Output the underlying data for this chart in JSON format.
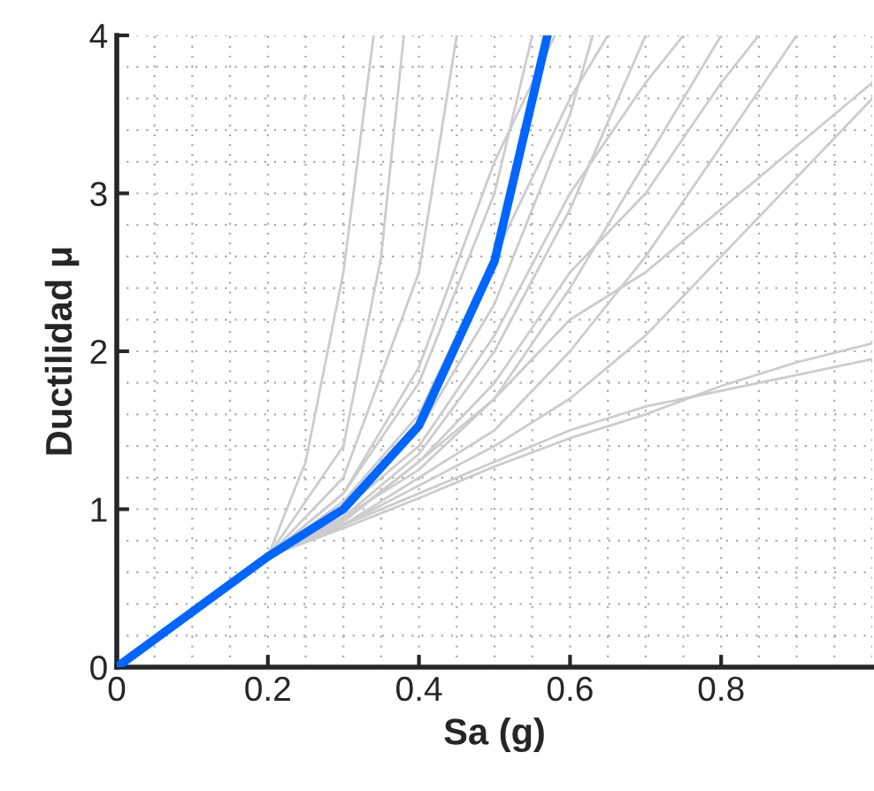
{
  "chart_data": {
    "type": "line",
    "xlabel": "Sa (g)",
    "ylabel": "Ductilidad μ",
    "xlim": [
      0,
      1
    ],
    "ylim": [
      0,
      4
    ],
    "xticks": [
      0,
      0.2,
      0.4,
      0.6,
      0.8
    ],
    "yticks": [
      0,
      1,
      2,
      3,
      4
    ],
    "grid": true,
    "legend": false,
    "marker": "none",
    "line_style": "solid",
    "series": [
      {
        "color": "#cccccc",
        "x": [
          0,
          0.2,
          0.3,
          0.35,
          0.38
        ],
        "values": [
          0,
          0.7,
          1.4,
          2.6,
          4
        ]
      },
      {
        "color": "#cccccc",
        "x": [
          0,
          0.2,
          0.3,
          0.4,
          0.45
        ],
        "values": [
          0,
          0.7,
          1.2,
          2.5,
          4
        ]
      },
      {
        "color": "#cccccc",
        "x": [
          0,
          0.2,
          0.3,
          0.4,
          0.5,
          0.55
        ],
        "values": [
          0,
          0.7,
          1.1,
          1.8,
          3.0,
          4
        ]
      },
      {
        "color": "#cccccc",
        "x": [
          0,
          0.2,
          0.3,
          0.4,
          0.5,
          0.6,
          0.63
        ],
        "values": [
          0,
          0.7,
          1.0,
          1.5,
          2.3,
          3.5,
          4
        ]
      },
      {
        "color": "#cccccc",
        "x": [
          0,
          0.2,
          0.3,
          0.4,
          0.5,
          0.6,
          0.7
        ],
        "values": [
          0,
          0.7,
          0.95,
          1.35,
          2.0,
          2.9,
          4
        ]
      },
      {
        "color": "#cccccc",
        "x": [
          0,
          0.2,
          0.3,
          0.4,
          0.5,
          0.6,
          0.7,
          0.8
        ],
        "values": [
          0,
          0.7,
          0.95,
          1.25,
          1.7,
          2.4,
          3.2,
          4
        ]
      },
      {
        "color": "#cccccc",
        "x": [
          0,
          0.2,
          0.3,
          0.4,
          0.5,
          0.6,
          0.7,
          0.8,
          0.9
        ],
        "values": [
          0,
          0.7,
          0.9,
          1.2,
          1.5,
          2.0,
          2.6,
          3.3,
          4
        ]
      },
      {
        "color": "#cccccc",
        "x": [
          0,
          0.2,
          0.3,
          0.4,
          0.5,
          0.6,
          0.7,
          0.8,
          0.9,
          1.0
        ],
        "values": [
          0,
          0.7,
          0.9,
          1.15,
          1.4,
          1.7,
          2.1,
          2.6,
          3.1,
          3.6
        ]
      },
      {
        "color": "#cccccc",
        "x": [
          0,
          0.2,
          0.3,
          0.4,
          0.5,
          0.6,
          0.7,
          0.8,
          0.9,
          1.0
        ],
        "values": [
          0,
          0.7,
          0.88,
          1.07,
          1.27,
          1.45,
          1.6,
          1.78,
          1.93,
          2.05
        ]
      },
      {
        "color": "#cccccc",
        "x": [
          0,
          0.2,
          0.3,
          0.4,
          0.5,
          0.6,
          0.7,
          0.8,
          0.9,
          1.0
        ],
        "values": [
          0,
          0.7,
          0.9,
          1.1,
          1.3,
          1.5,
          1.65,
          1.75,
          1.85,
          1.95
        ]
      },
      {
        "color": "#cccccc",
        "x": [
          0,
          0.2,
          0.3,
          0.4,
          0.5,
          0.6,
          0.65
        ],
        "values": [
          0,
          0.7,
          1.05,
          1.6,
          2.6,
          3.6,
          4
        ]
      },
      {
        "color": "#cccccc",
        "x": [
          0,
          0.2,
          0.3,
          0.4,
          0.5,
          0.6,
          0.7,
          0.8,
          0.85
        ],
        "values": [
          0,
          0.7,
          0.92,
          1.3,
          1.8,
          2.5,
          3.0,
          3.7,
          4
        ]
      },
      {
        "color": "#cccccc",
        "x": [
          0,
          0.2,
          0.3,
          0.4,
          0.5,
          0.6,
          0.7,
          0.8,
          0.9,
          1.0
        ],
        "values": [
          0,
          0.7,
          0.93,
          1.3,
          1.7,
          2.2,
          2.5,
          2.9,
          3.3,
          3.7
        ]
      },
      {
        "color": "#cccccc",
        "x": [
          0,
          0.2,
          0.25,
          0.3,
          0.34
        ],
        "values": [
          0,
          0.7,
          1.3,
          2.5,
          4
        ]
      },
      {
        "color": "#cccccc",
        "x": [
          0,
          0.2,
          0.3,
          0.4,
          0.5,
          0.58
        ],
        "values": [
          0,
          0.7,
          1.1,
          1.9,
          3.2,
          4
        ]
      },
      {
        "color": "#cccccc",
        "x": [
          0,
          0.2,
          0.3,
          0.4,
          0.5,
          0.6,
          0.7,
          0.75
        ],
        "values": [
          0,
          0.7,
          1.0,
          1.4,
          2.1,
          3.0,
          3.7,
          4
        ]
      },
      {
        "color": "#0066ff",
        "x": [
          0,
          0.2,
          0.3,
          0.4,
          0.5,
          0.57
        ],
        "values": [
          0,
          0.7,
          1.0,
          1.53,
          2.57,
          4
        ]
      }
    ]
  }
}
